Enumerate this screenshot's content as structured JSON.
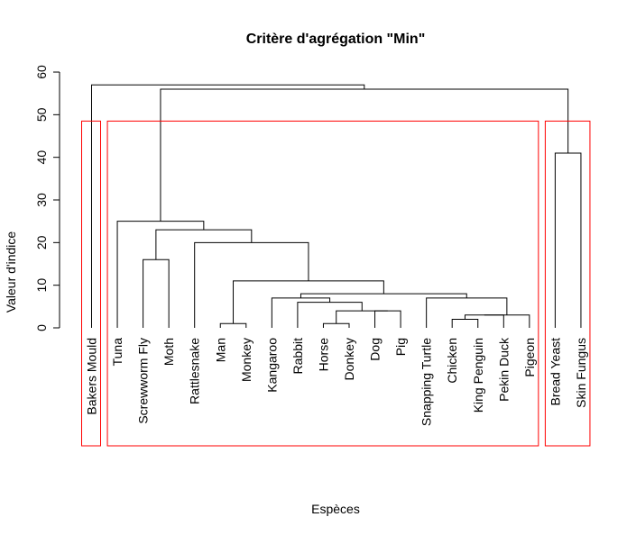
{
  "chart_data": {
    "type": "dendrogram",
    "title": "Critère d'agrégation \"Min\"",
    "xlabel": "Espèces",
    "ylabel": "Valeur d'indice",
    "ylim": [
      0,
      60
    ],
    "yticks": [
      0,
      10,
      20,
      30,
      40,
      50,
      60
    ],
    "leaves": [
      "Bakers Mould",
      "Tuna",
      "Screwworm Fly",
      "Moth",
      "Rattlesnake",
      "Man",
      "Monkey",
      "Kangaroo",
      "Rabbit",
      "Horse",
      "Donkey",
      "Dog",
      "Pig",
      "Snapping Turtle",
      "Chicken",
      "King Penguin",
      "Pekin Duck",
      "Pigeon",
      "Bread Yeast",
      "Skin Fungus"
    ],
    "merges": [
      {
        "left": "Horse",
        "right": "Donkey",
        "height": 1
      },
      {
        "left": "Man",
        "right": "Monkey",
        "height": 1
      },
      {
        "left": "Chicken",
        "right": "King Penguin",
        "height": 2
      },
      {
        "left": "Chicken+King Penguin",
        "right": "Pekin Duck",
        "height": 3
      },
      {
        "left": "Chicken+King Penguin+Pekin Duck",
        "right": "Pigeon",
        "height": 3
      },
      {
        "left": "Dog",
        "right": "Pig",
        "height": 4
      },
      {
        "left": "Horse+Donkey",
        "right": "Dog+Pig",
        "height": 4
      },
      {
        "left": "Rabbit",
        "right": "Horse+Donkey+Dog+Pig",
        "height": 6
      },
      {
        "left": "Kangaroo",
        "right": "Rabbit+Horse+Donkey+Dog+Pig",
        "height": 7
      },
      {
        "left": "Snapping Turtle",
        "right": "Chicken+King Penguin+Pekin Duck+Pigeon",
        "height": 7
      },
      {
        "left": "Kangaroo group",
        "right": "Snapping Turtle group",
        "height": 8
      },
      {
        "left": "Man+Monkey",
        "right": "Kangaroo..Pigeon",
        "height": 11
      },
      {
        "left": "Screwworm Fly",
        "right": "Moth",
        "height": 16
      },
      {
        "left": "Rattlesnake",
        "right": "Man..Pigeon",
        "height": 20
      },
      {
        "left": "Screwworm Fly+Moth",
        "right": "Rattlesnake..Pigeon",
        "height": 23
      },
      {
        "left": "Tuna",
        "right": "Screwworm Fly..Pigeon",
        "height": 25
      },
      {
        "left": "Bread Yeast",
        "right": "Skin Fungus",
        "height": 41
      },
      {
        "left": "Tuna..Pigeon",
        "right": "Bread Yeast+Skin Fungus",
        "height": 56
      },
      {
        "left": "Bakers Mould",
        "right": "Tuna..Skin Fungus",
        "height": 57
      }
    ],
    "clusters": [
      {
        "members": [
          "Bakers Mould"
        ]
      },
      {
        "members": [
          "Tuna",
          "Screwworm Fly",
          "Moth",
          "Rattlesnake",
          "Man",
          "Monkey",
          "Kangaroo",
          "Rabbit",
          "Horse",
          "Donkey",
          "Dog",
          "Pig",
          "Snapping Turtle",
          "Chicken",
          "King Penguin",
          "Pekin Duck",
          "Pigeon"
        ]
      },
      {
        "members": [
          "Bread Yeast",
          "Skin Fungus"
        ]
      }
    ],
    "cluster_color": "#ff0000",
    "line_color": "#000000"
  }
}
